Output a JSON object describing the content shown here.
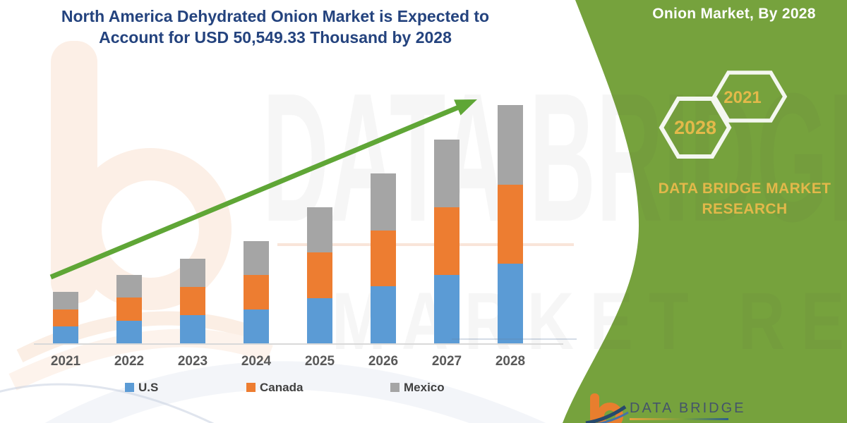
{
  "banner": {
    "headline_line1": "North America Dehydrated Onion Market is Expected to",
    "headline_line2": "Account for USD 50,549.33 Thousand by 2028",
    "side_caption": "Onion Market, By 2028",
    "hexagons": [
      "2028",
      "2021"
    ],
    "brand_line1": "DATA BRIDGE MARKET",
    "brand_line2": "RESEARCH",
    "colors": {
      "band_green": "#76A23D",
      "accent_yellow": "#E2B84A",
      "title_navy": "#24437E",
      "arrow_green": "#5FA636"
    }
  },
  "watermark": {
    "line1": "DATA BRIDGE",
    "line2": "MARKET RESEARCH"
  },
  "logo": {
    "text": "DATA BRIDGE"
  },
  "chart_data": {
    "type": "bar",
    "stacked": true,
    "title": "North America Dehydrated Onion Market is Expected to Account for USD 50,549.33 Thousand by 2028",
    "value_unit": "USD Thousand",
    "categories": [
      "2021",
      "2022",
      "2023",
      "2024",
      "2025",
      "2026",
      "2027",
      "2028"
    ],
    "series": [
      {
        "name": "U.S",
        "color": "#5B9BD5",
        "values": [
          3630,
          4790,
          6030,
          7220,
          9530,
          12160,
          14550,
          16900
        ]
      },
      {
        "name": "Canada",
        "color": "#ED7D31",
        "values": [
          3590,
          4890,
          5980,
          7280,
          9720,
          11810,
          14310,
          16800
        ]
      },
      {
        "name": "Mexico",
        "color": "#A5A5A5",
        "values": [
          3650,
          4790,
          5980,
          7130,
          9570,
          12110,
          14360,
          16849.33
        ]
      }
    ],
    "totals": [
      10870,
      14470,
      17990,
      21630,
      28820,
      36080,
      43220,
      50549.33
    ],
    "ylim": [
      0,
      55000
    ],
    "y_axis_labels_visible": false,
    "gridlines": false,
    "legend_position": "bottom",
    "trend_arrow": true
  }
}
